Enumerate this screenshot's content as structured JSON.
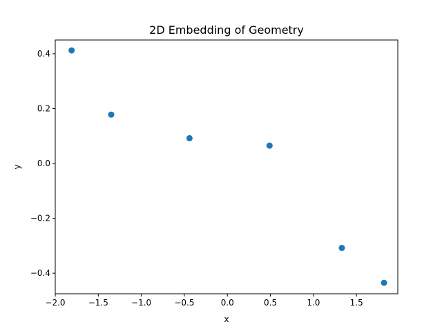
{
  "chart_data": {
    "type": "scatter",
    "title": "2D Embedding of Geometry",
    "xlabel": "x",
    "ylabel": "y",
    "xlim": [
      -2.0,
      1.98
    ],
    "ylim": [
      -0.475,
      0.45
    ],
    "xticks": [
      -2.0,
      -1.5,
      -1.0,
      -0.5,
      0.0,
      0.5,
      1.0,
      1.5
    ],
    "xtick_labels": [
      "−2.0",
      "−1.5",
      "−1.0",
      "−0.5",
      "0.0",
      "0.5",
      "1.0",
      "1.5"
    ],
    "yticks": [
      0.4,
      0.2,
      0.0,
      -0.2,
      -0.4
    ],
    "ytick_labels": [
      "0.4",
      "0.2",
      "0.0",
      "−0.2",
      "−0.4"
    ],
    "grid": false,
    "points": [
      {
        "x": -1.81,
        "y": 0.412
      },
      {
        "x": -1.35,
        "y": 0.178
      },
      {
        "x": -0.44,
        "y": 0.092
      },
      {
        "x": 0.49,
        "y": 0.065
      },
      {
        "x": 1.33,
        "y": -0.308
      },
      {
        "x": 1.82,
        "y": -0.435
      }
    ],
    "marker_color": "#1f77b4"
  }
}
